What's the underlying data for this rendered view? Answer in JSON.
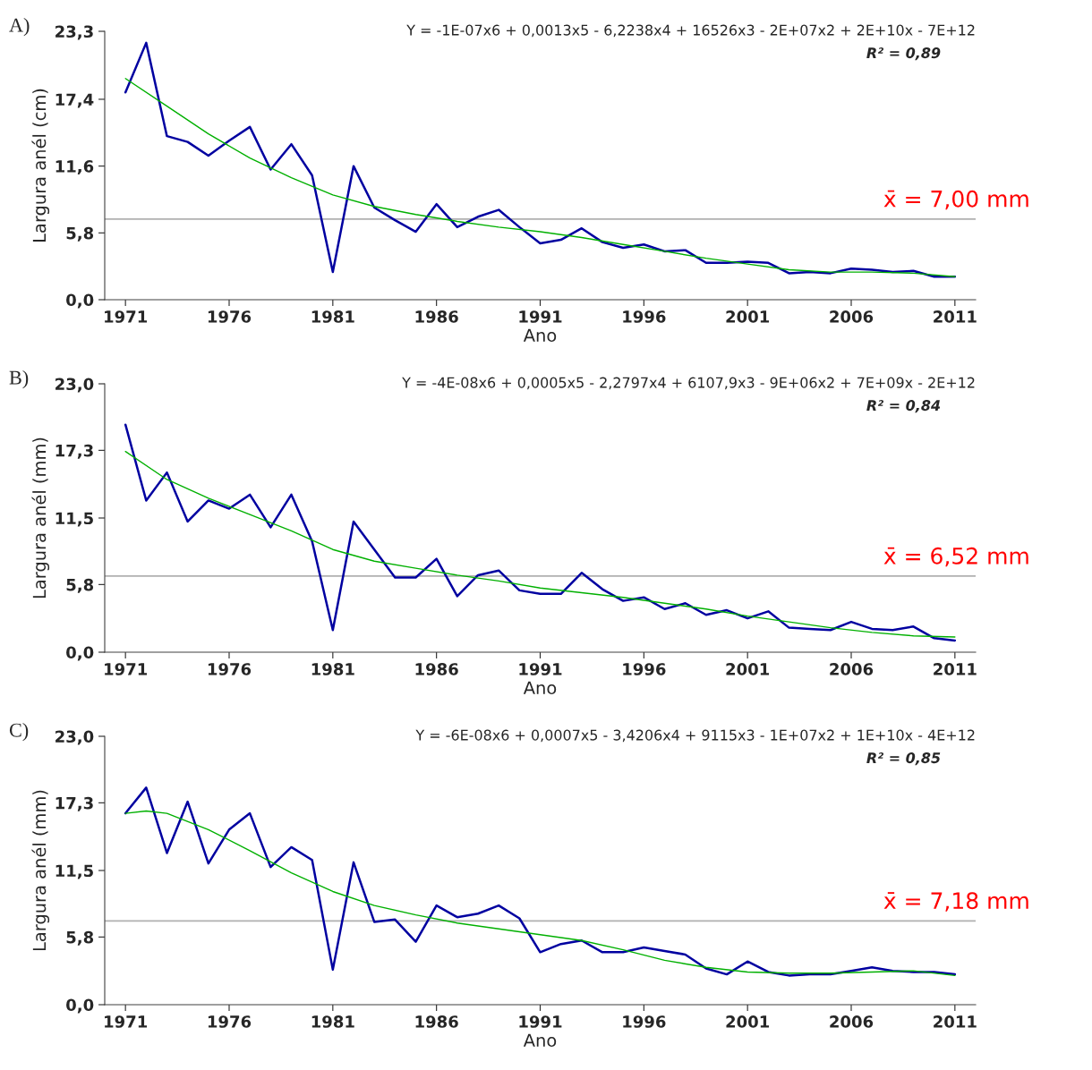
{
  "chart_data": [
    {
      "type": "line",
      "title": "A)",
      "xlabel": "Ano",
      "ylabel": "Largura anél (cm)",
      "x": [
        1971,
        1972,
        1973,
        1974,
        1975,
        1976,
        1977,
        1978,
        1979,
        1980,
        1981,
        1982,
        1983,
        1984,
        1985,
        1986,
        1987,
        1988,
        1989,
        1990,
        1991,
        1992,
        1993,
        1994,
        1995,
        1996,
        1997,
        1998,
        1999,
        2000,
        2001,
        2002,
        2003,
        2004,
        2005,
        2006,
        2007,
        2008,
        2009,
        2010,
        2011
      ],
      "series": [
        {
          "color": "#0000a0",
          "values": [
            18.0,
            22.3,
            14.2,
            13.7,
            12.5,
            13.8,
            15.0,
            11.3,
            13.5,
            10.8,
            2.4,
            11.6,
            8.0,
            6.9,
            5.9,
            8.3,
            6.3,
            7.2,
            7.8,
            6.3,
            4.9,
            5.2,
            6.2,
            5.0,
            4.5,
            4.8,
            4.2,
            4.3,
            3.2,
            3.2,
            3.3,
            3.2,
            2.3,
            2.4,
            2.3,
            2.7,
            2.6,
            2.4,
            2.5,
            2.0,
            2.0
          ]
        },
        {
          "type": "line",
          "color": "#00b000",
          "x": [
            1971,
            1973,
            1975,
            1977,
            1979,
            1981,
            1983,
            1985,
            1987,
            1989,
            1991,
            1993,
            1995,
            1997,
            1999,
            2001,
            2003,
            2005,
            2007,
            2009,
            2011
          ],
          "values": [
            19.2,
            16.8,
            14.4,
            12.3,
            10.6,
            9.1,
            8.1,
            7.4,
            6.8,
            6.3,
            5.9,
            5.4,
            4.8,
            4.2,
            3.6,
            3.1,
            2.6,
            2.4,
            2.4,
            2.3,
            2.0
          ]
        }
      ],
      "xlim": [
        1970,
        2012
      ],
      "xticks": [
        1971,
        1976,
        1981,
        1986,
        1991,
        1996,
        2001,
        2006,
        2011
      ],
      "ylim": [
        0,
        23.3
      ],
      "yticks": [
        {
          "value": 0,
          "label": "0,0"
        },
        {
          "value": 5.8,
          "label": "5,8"
        },
        {
          "value": 11.6,
          "label": "11,6"
        },
        {
          "value": 17.4,
          "label": "17,4"
        },
        {
          "value": 23.3,
          "label": "23,3"
        }
      ],
      "ref_lines": [
        {
          "axis": "y",
          "value": 7.0,
          "label": "x̄ = 7,00 mm",
          "color": "#b0b0b0"
        }
      ],
      "annotations": [
        "Y = -1E-07x6 + 0,0013x5 - 6,2238x4 + 16526x3 - 2E+07x2 + 2E+10x - 7E+12",
        "R² = 0,89"
      ],
      "grid": false,
      "legend": false,
      "marker": "none",
      "line_style": "solid"
    },
    {
      "type": "line",
      "title": "B)",
      "xlabel": "Ano",
      "ylabel": "Largura anél (mm)",
      "x": [
        1971,
        1972,
        1973,
        1974,
        1975,
        1976,
        1977,
        1978,
        1979,
        1980,
        1981,
        1982,
        1983,
        1984,
        1985,
        1986,
        1987,
        1988,
        1989,
        1990,
        1991,
        1992,
        1993,
        1994,
        1995,
        1996,
        1997,
        1998,
        1999,
        2000,
        2001,
        2002,
        2003,
        2004,
        2005,
        2006,
        2007,
        2008,
        2009,
        2010,
        2011
      ],
      "series": [
        {
          "color": "#0000a0",
          "values": [
            19.5,
            13.0,
            15.4,
            11.2,
            13.0,
            12.3,
            13.5,
            10.7,
            13.5,
            9.5,
            1.9,
            11.2,
            8.8,
            6.4,
            6.4,
            8.0,
            4.8,
            6.6,
            7.0,
            5.3,
            5.0,
            5.0,
            6.8,
            5.4,
            4.4,
            4.7,
            3.7,
            4.2,
            3.2,
            3.6,
            2.9,
            3.5,
            2.1,
            2.0,
            1.9,
            2.6,
            2.0,
            1.9,
            2.2,
            1.2,
            1.0
          ]
        },
        {
          "type": "line",
          "color": "#00b000",
          "x": [
            1971,
            1973,
            1975,
            1977,
            1979,
            1981,
            1983,
            1985,
            1987,
            1989,
            1991,
            1993,
            1995,
            1997,
            1999,
            2001,
            2003,
            2005,
            2007,
            2009,
            2011
          ],
          "values": [
            17.2,
            14.8,
            13.2,
            11.8,
            10.4,
            8.8,
            7.8,
            7.2,
            6.6,
            6.1,
            5.5,
            5.1,
            4.7,
            4.2,
            3.7,
            3.1,
            2.6,
            2.1,
            1.7,
            1.4,
            1.3
          ]
        }
      ],
      "xlim": [
        1970,
        2012
      ],
      "xticks": [
        1971,
        1976,
        1981,
        1986,
        1991,
        1996,
        2001,
        2006,
        2011
      ],
      "ylim": [
        0,
        23.0
      ],
      "yticks": [
        {
          "value": 0,
          "label": "0,0"
        },
        {
          "value": 5.8,
          "label": "5,8"
        },
        {
          "value": 11.5,
          "label": "11,5"
        },
        {
          "value": 17.3,
          "label": "17,3"
        },
        {
          "value": 23.0,
          "label": "23,0"
        }
      ],
      "ref_lines": [
        {
          "axis": "y",
          "value": 6.52,
          "label": "x̄ = 6,52 mm",
          "color": "#b0b0b0"
        }
      ],
      "annotations": [
        "Y = -4E-08x6 + 0,0005x5 - 2,2797x4 + 6107,9x3 - 9E+06x2 + 7E+09x - 2E+12",
        "R² = 0,84"
      ],
      "grid": false,
      "legend": false,
      "marker": "none",
      "line_style": "solid"
    },
    {
      "type": "line",
      "title": "C)",
      "xlabel": "Ano",
      "ylabel": "Largura anél (mm)",
      "x": [
        1971,
        1972,
        1973,
        1974,
        1975,
        1976,
        1977,
        1978,
        1979,
        1980,
        1981,
        1982,
        1983,
        1984,
        1985,
        1986,
        1987,
        1988,
        1989,
        1990,
        1991,
        1992,
        1993,
        1994,
        1995,
        1996,
        1997,
        1998,
        1999,
        2000,
        2001,
        2002,
        2003,
        2004,
        2005,
        2006,
        2007,
        2008,
        2009,
        2010,
        2011
      ],
      "series": [
        {
          "color": "#0000a0",
          "values": [
            16.4,
            18.6,
            13.0,
            17.4,
            12.1,
            15.0,
            16.4,
            11.8,
            13.5,
            12.4,
            3.0,
            12.2,
            7.1,
            7.3,
            5.4,
            8.5,
            7.5,
            7.8,
            8.5,
            7.4,
            4.5,
            5.2,
            5.5,
            4.5,
            4.5,
            4.9,
            4.6,
            4.3,
            3.1,
            2.6,
            3.7,
            2.8,
            2.5,
            2.6,
            2.6,
            2.9,
            3.2,
            2.9,
            2.8,
            2.8,
            2.6
          ]
        },
        {
          "type": "line",
          "color": "#00b000",
          "x": [
            1971,
            1972,
            1973,
            1975,
            1977,
            1979,
            1981,
            1983,
            1985,
            1987,
            1989,
            1991,
            1993,
            1995,
            1997,
            1999,
            2001,
            2003,
            2005,
            2007,
            2009,
            2011
          ],
          "values": [
            16.4,
            16.6,
            16.4,
            15.0,
            13.2,
            11.3,
            9.7,
            8.5,
            7.7,
            7.0,
            6.5,
            6.0,
            5.5,
            4.7,
            3.8,
            3.2,
            2.8,
            2.7,
            2.7,
            2.8,
            2.9,
            2.5
          ]
        }
      ],
      "xlim": [
        1970,
        2012
      ],
      "xticks": [
        1971,
        1976,
        1981,
        1986,
        1991,
        1996,
        2001,
        2006,
        2011
      ],
      "ylim": [
        0,
        23.0
      ],
      "yticks": [
        {
          "value": 0,
          "label": "0,0"
        },
        {
          "value": 5.8,
          "label": "5,8"
        },
        {
          "value": 11.5,
          "label": "11,5"
        },
        {
          "value": 17.3,
          "label": "17,3"
        },
        {
          "value": 23.0,
          "label": "23,0"
        }
      ],
      "ref_lines": [
        {
          "axis": "y",
          "value": 7.18,
          "label": "x̄ = 7,18 mm",
          "color": "#b0b0b0"
        }
      ],
      "annotations": [
        "Y = -6E-08x6 + 0,0007x5 - 3,4206x4 + 9115x3 - 1E+07x2 + 1E+10x - 4E+12",
        "R² = 0,85"
      ],
      "grid": false,
      "legend": false,
      "marker": "none",
      "line_style": "solid"
    }
  ]
}
